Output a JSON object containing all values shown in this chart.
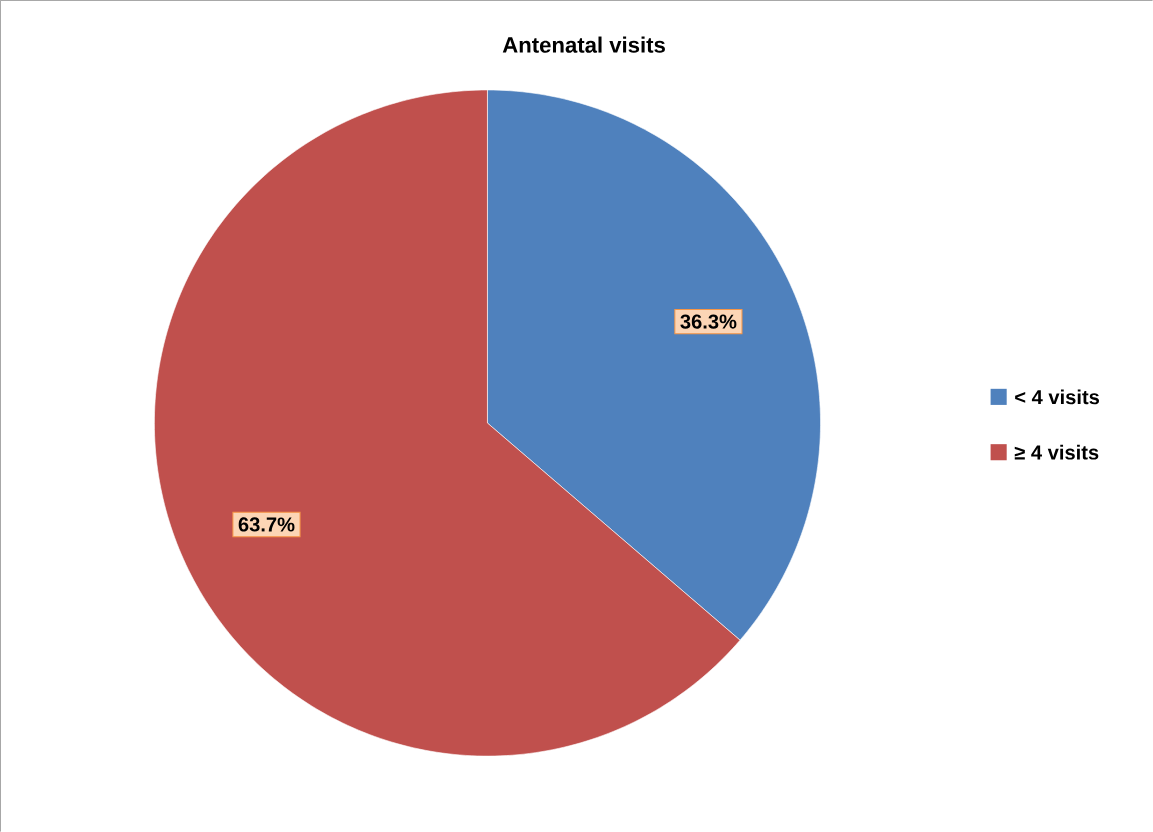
{
  "chart_data": {
    "type": "pie",
    "title": "Antenatal visits",
    "categories": [
      "< 4 visits",
      "≥ 4 visits"
    ],
    "values": [
      36.3,
      63.7
    ],
    "colors": [
      "#4f81bd",
      "#c0504d"
    ],
    "value_labels": [
      "36.3%",
      "63.7%"
    ],
    "legend": "right"
  }
}
